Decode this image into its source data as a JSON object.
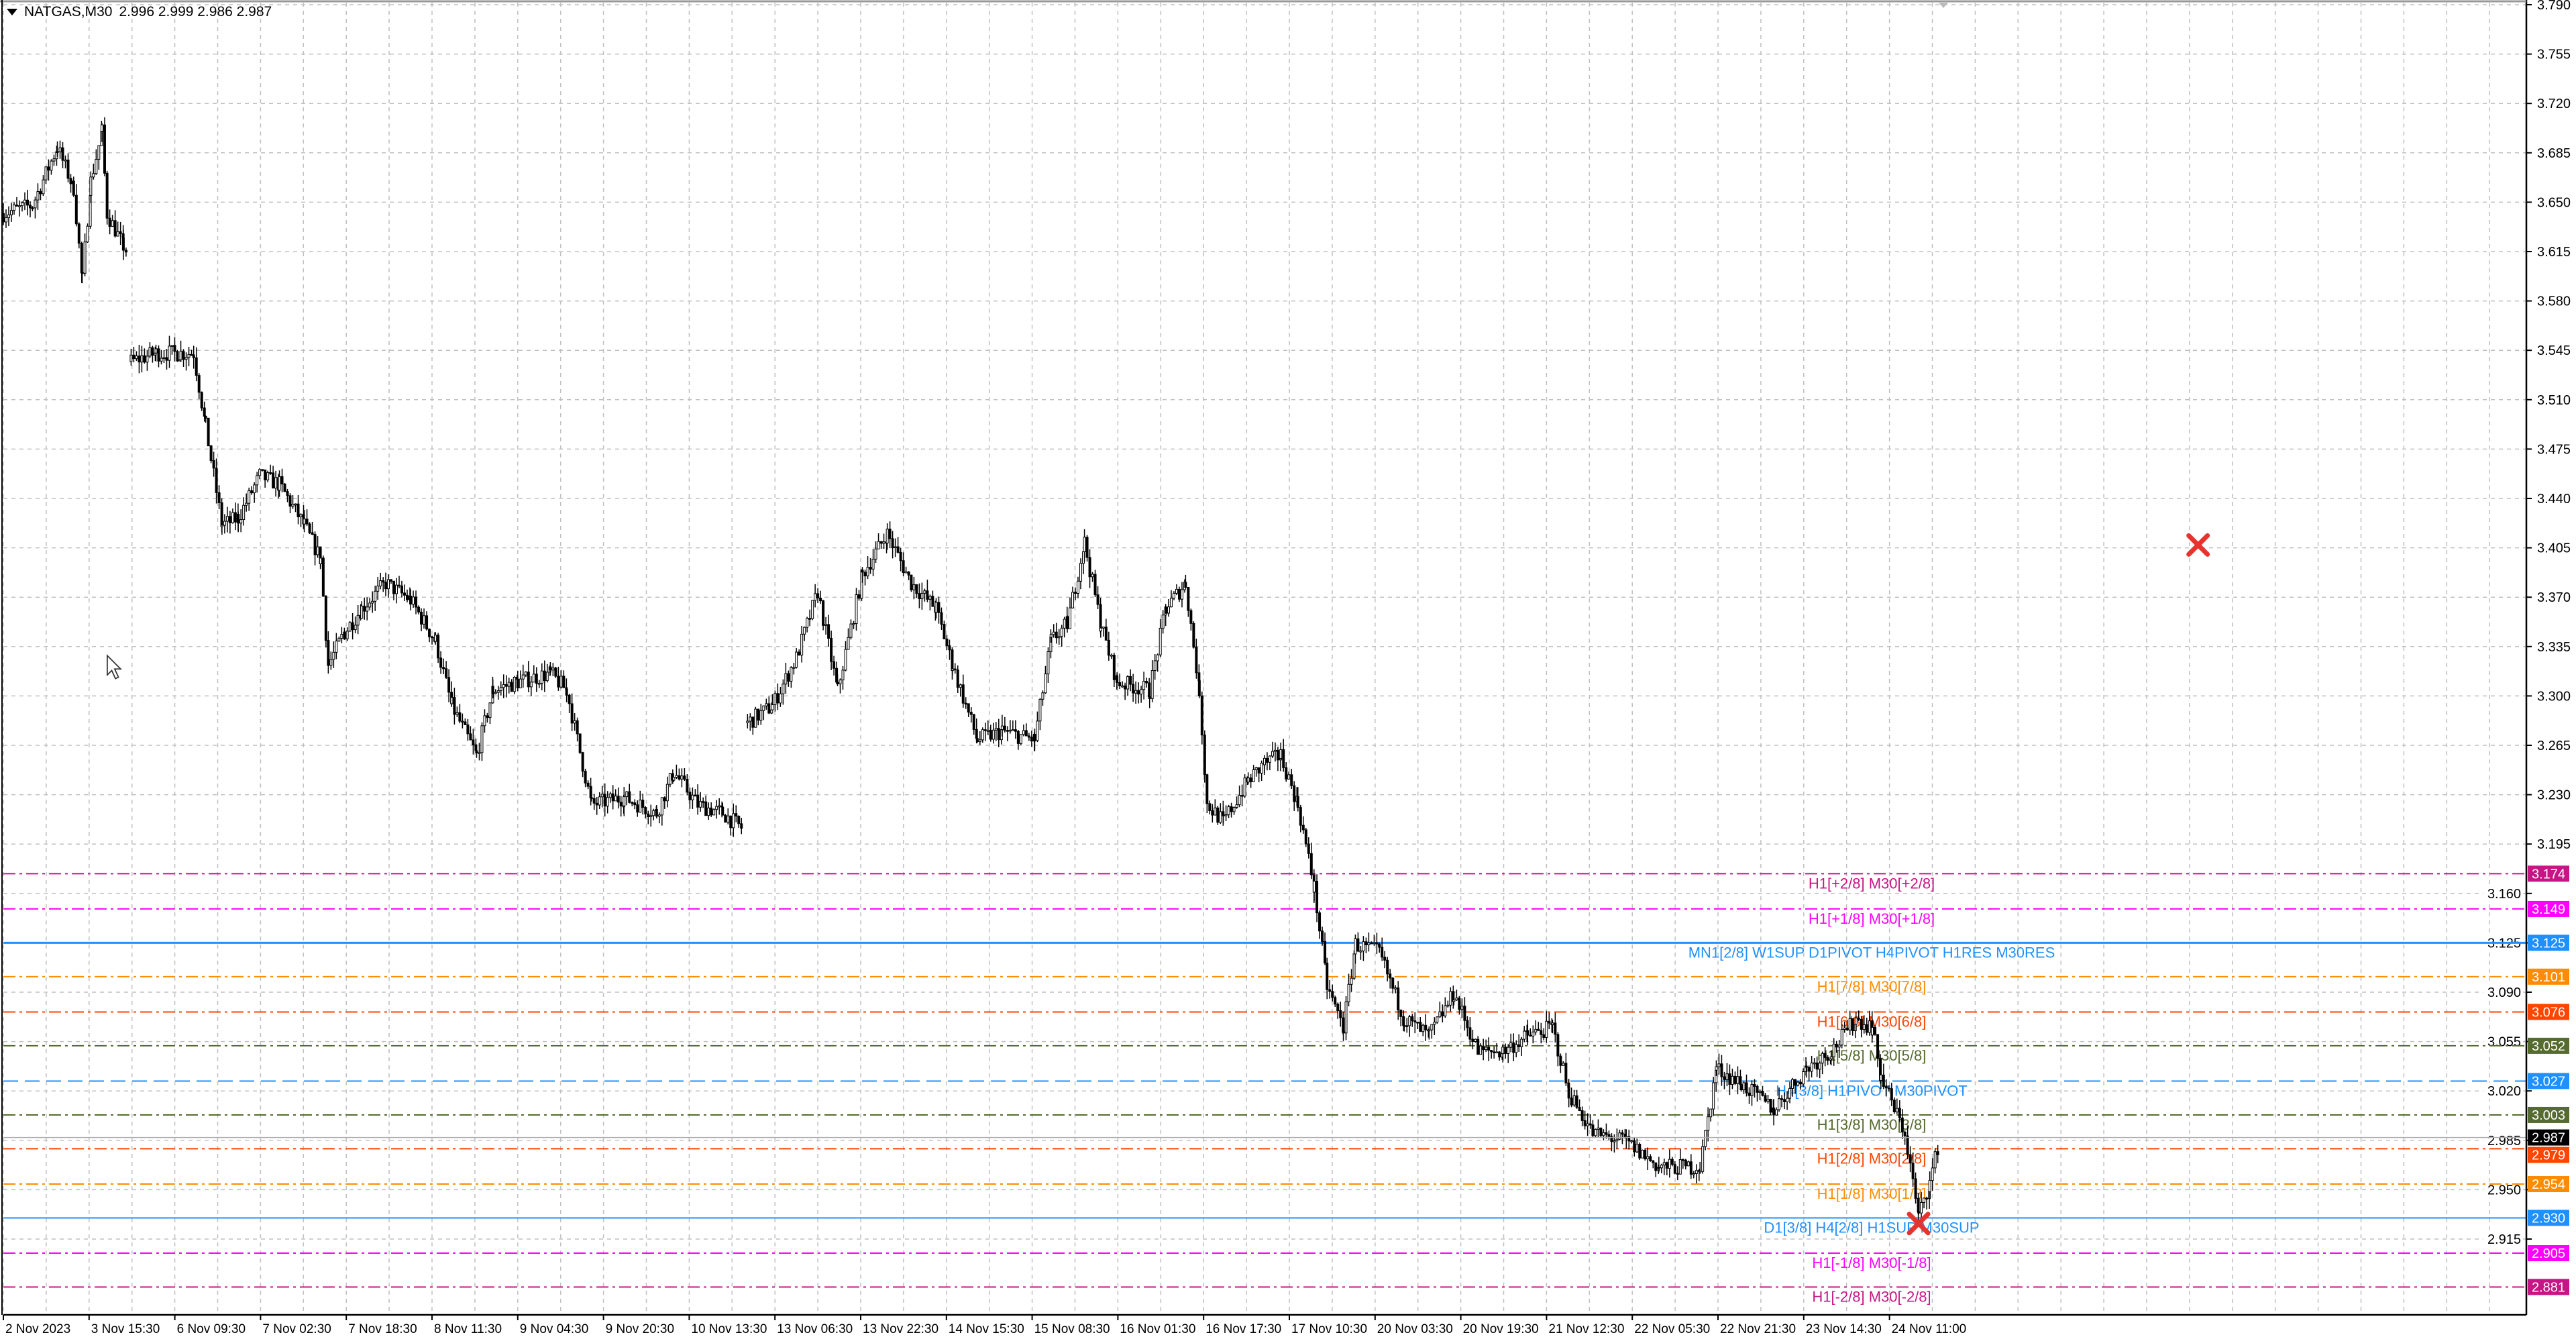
{
  "header": {
    "symbol": "NATGAS,M30",
    "ohlc": "2.996 2.999 2.986 2.987"
  },
  "colors": {
    "grid": "#c0c0c0",
    "axis": "#000000",
    "candle": "#000000",
    "current_price_bg": "#000000",
    "marker": "#e8322d"
  },
  "chart_data": {
    "type": "candlestick",
    "ylim": [
      2.861,
      3.79
    ],
    "price_ticks": [
      "3.790",
      "3.755",
      "3.720",
      "3.685",
      "3.650",
      "3.615",
      "3.580",
      "3.545",
      "3.510",
      "3.475",
      "3.440",
      "3.405",
      "3.370",
      "3.335",
      "3.300",
      "3.265",
      "3.230",
      "3.195",
      "3.160",
      "3.125",
      "3.090",
      "3.055",
      "3.020",
      "2.985",
      "2.950",
      "2.915"
    ],
    "time_ticks": [
      "2 Nov 2023",
      "3 Nov 15:30",
      "6 Nov 09:30",
      "7 Nov 02:30",
      "7 Nov 18:30",
      "8 Nov 11:30",
      "9 Nov 04:30",
      "9 Nov 20:30",
      "10 Nov 13:30",
      "13 Nov 06:30",
      "13 Nov 22:30",
      "14 Nov 15:30",
      "15 Nov 08:30",
      "16 Nov 01:30",
      "16 Nov 17:30",
      "17 Nov 10:30",
      "20 Nov 03:30",
      "20 Nov 19:30",
      "21 Nov 12:30",
      "22 Nov 05:30",
      "22 Nov 21:30",
      "23 Nov 14:30",
      "24 Nov 11:00"
    ],
    "price_path": [
      [
        0,
        3.642
      ],
      [
        0.34,
        3.648
      ],
      [
        0.63,
        3.689
      ],
      [
        0.82,
        3.66
      ],
      [
        0.92,
        3.595
      ],
      [
        1.02,
        3.665
      ],
      [
        1.15,
        3.7
      ],
      [
        1.21,
        3.642
      ],
      [
        1.4,
        3.619
      ],
      [
        1.46,
        3.613
      ],
      [
        1.49,
        3.537
      ],
      [
        1.78,
        3.543
      ],
      [
        2.07,
        3.543
      ],
      [
        2.22,
        3.543
      ],
      [
        2.36,
        3.491
      ],
      [
        2.55,
        3.421
      ],
      [
        2.74,
        3.426
      ],
      [
        2.99,
        3.456
      ],
      [
        3.22,
        3.45
      ],
      [
        3.51,
        3.421
      ],
      [
        3.7,
        3.397
      ],
      [
        3.79,
        3.322
      ],
      [
        3.98,
        3.345
      ],
      [
        4.18,
        3.362
      ],
      [
        4.46,
        3.38
      ],
      [
        4.75,
        3.368
      ],
      [
        5.04,
        3.339
      ],
      [
        5.23,
        3.293
      ],
      [
        5.52,
        3.258
      ],
      [
        5.71,
        3.304
      ],
      [
        6.0,
        3.31
      ],
      [
        6.38,
        3.316
      ],
      [
        6.57,
        3.304
      ],
      [
        6.86,
        3.223
      ],
      [
        7.24,
        3.228
      ],
      [
        7.62,
        3.217
      ],
      [
        7.82,
        3.246
      ],
      [
        8.1,
        3.223
      ],
      [
        8.39,
        3.217
      ],
      [
        8.64,
        3.205
      ],
      [
        8.68,
        3.281
      ],
      [
        8.97,
        3.293
      ],
      [
        9.25,
        3.327
      ],
      [
        9.5,
        3.374
      ],
      [
        9.73,
        3.304
      ],
      [
        10.02,
        3.386
      ],
      [
        10.31,
        3.415
      ],
      [
        10.59,
        3.38
      ],
      [
        10.88,
        3.362
      ],
      [
        11.07,
        3.322
      ],
      [
        11.36,
        3.269
      ],
      [
        11.65,
        3.275
      ],
      [
        12.03,
        3.269
      ],
      [
        12.22,
        3.339
      ],
      [
        12.41,
        3.351
      ],
      [
        12.61,
        3.409
      ],
      [
        12.8,
        3.351
      ],
      [
        12.99,
        3.31
      ],
      [
        13.37,
        3.304
      ],
      [
        13.56,
        3.362
      ],
      [
        13.79,
        3.38
      ],
      [
        13.95,
        3.304
      ],
      [
        14.04,
        3.223
      ],
      [
        14.23,
        3.211
      ],
      [
        14.52,
        3.24
      ],
      [
        14.71,
        3.252
      ],
      [
        14.9,
        3.258
      ],
      [
        15.1,
        3.223
      ],
      [
        15.29,
        3.164
      ],
      [
        15.44,
        3.094
      ],
      [
        15.63,
        3.065
      ],
      [
        15.77,
        3.124
      ],
      [
        16.05,
        3.118
      ],
      [
        16.34,
        3.071
      ],
      [
        16.63,
        3.059
      ],
      [
        16.92,
        3.089
      ],
      [
        17.2,
        3.048
      ],
      [
        17.49,
        3.048
      ],
      [
        17.78,
        3.059
      ],
      [
        18.07,
        3.065
      ],
      [
        18.26,
        3.019
      ],
      [
        18.54,
        2.99
      ],
      [
        18.93,
        2.984
      ],
      [
        19.31,
        2.966
      ],
      [
        19.79,
        2.966
      ],
      [
        19.98,
        3.036
      ],
      [
        20.27,
        3.025
      ],
      [
        20.65,
        3.007
      ],
      [
        21.03,
        3.036
      ],
      [
        21.32,
        3.048
      ],
      [
        21.61,
        3.071
      ],
      [
        21.8,
        3.065
      ],
      [
        21.9,
        3.03
      ],
      [
        22.18,
        2.99
      ],
      [
        22.34,
        2.931
      ],
      [
        22.47,
        2.955
      ],
      [
        22.59,
        2.987
      ]
    ],
    "current_price": "2.987",
    "levels": [
      {
        "price": "3.174",
        "label": "H1[+2/8] M30[+2/8]",
        "color": "#c71585",
        "style": "dashdot"
      },
      {
        "price": "3.149",
        "label": "H1[+1/8] M30[+1/8]",
        "color": "#ff00ff",
        "style": "dashdot"
      },
      {
        "price": "3.125",
        "label": "MN1[2/8] W1SUP D1PIVOT H4PIVOT H1RES M30RES",
        "color": "#1e90ff",
        "style": "solid-thick"
      },
      {
        "price": "3.101",
        "label": "H1[7/8] M30[7/8]",
        "color": "#ff8c00",
        "style": "dashdot"
      },
      {
        "price": "3.076",
        "label": "H1[6/8] M30[6/8]",
        "color": "#ff4500",
        "style": "dashdot"
      },
      {
        "price": "3.052",
        "label": "H1[5/8] M30[5/8]",
        "color": "#556b2f",
        "style": "dashdot"
      },
      {
        "price": "3.027",
        "label": "H4[3/8] H1PIVOT M30PIVOT",
        "color": "#1e90ff",
        "style": "dashed"
      },
      {
        "price": "3.003",
        "label": "H1[3/8] M30[3/8]",
        "color": "#556b2f",
        "style": "dashdot"
      },
      {
        "price": "2.979",
        "label": "H1[2/8] M30[2/8]",
        "color": "#ff4500",
        "style": "dashdot"
      },
      {
        "price": "2.954",
        "label": "H1[1/8] M30[1/8]",
        "color": "#ff8c00",
        "style": "dashdot"
      },
      {
        "price": "2.930",
        "label": "D1[3/8] H4[2/8] H1SUP M30SUP",
        "color": "#1e90ff",
        "style": "solid"
      },
      {
        "price": "2.905",
        "label": "H1[-1/8] M30[-1/8]",
        "color": "#ff00ff",
        "style": "dashdot"
      },
      {
        "price": "2.881",
        "label": "H1[-2/8] M30[-2/8]",
        "color": "#c71585",
        "style": "dashdot"
      }
    ],
    "markers": [
      {
        "icon": "red-x-icon",
        "time_pos": 25.6,
        "price": 3.407
      },
      {
        "icon": "red-x-icon",
        "time_pos": 22.34,
        "price": 2.926
      }
    ]
  }
}
